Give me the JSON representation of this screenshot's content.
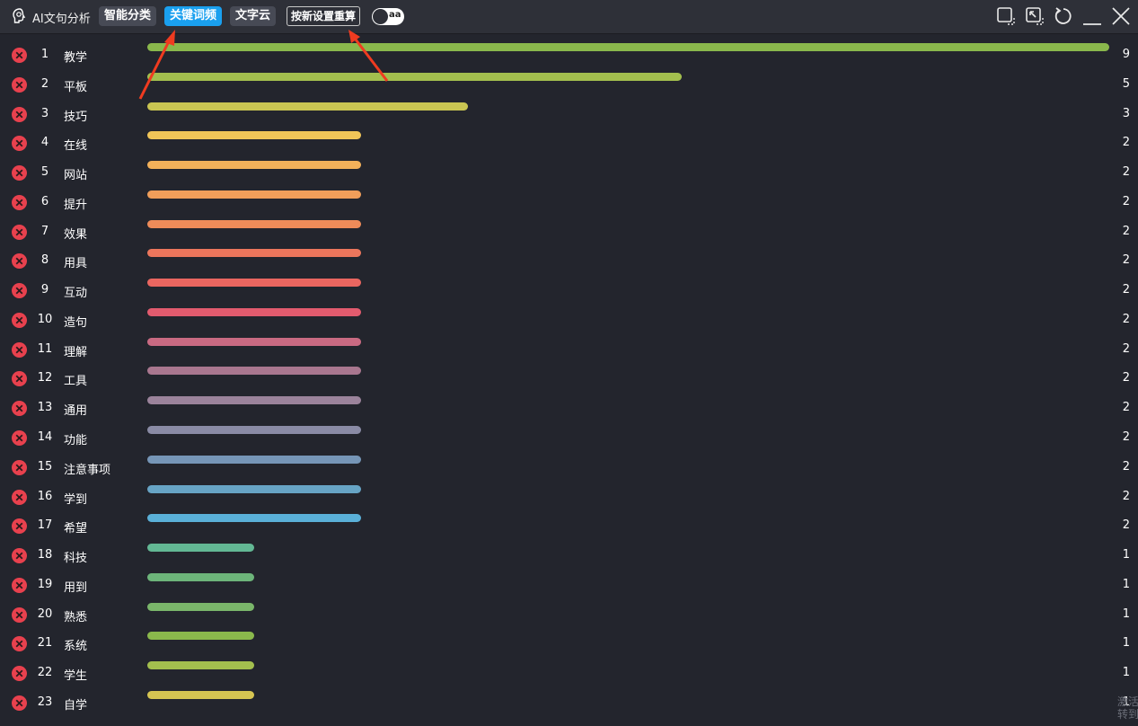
{
  "header": {
    "app_title": "AI文句分析",
    "tabs": [
      {
        "label": "智能分类",
        "active": false
      },
      {
        "label": "关键词频",
        "active": true
      },
      {
        "label": "文字云",
        "active": false
      }
    ],
    "recalc_button": "按新设置重算",
    "toggle_label": "aa",
    "toggle_on": false,
    "accent_color": "#1aa0ef"
  },
  "window_controls": [
    "snap-icon",
    "pin-icon",
    "refresh-icon",
    "minimize-icon",
    "close-icon"
  ],
  "keywords": [
    {
      "rank": "1",
      "word": "教学",
      "count": "9",
      "color": "#8ab84c"
    },
    {
      "rank": "2",
      "word": "平板",
      "count": "5",
      "color": "#a3bf4e"
    },
    {
      "rank": "3",
      "word": "技巧",
      "count": "3",
      "color": "#c9c552"
    },
    {
      "rank": "4",
      "word": "在线",
      "count": "2",
      "color": "#f0c558"
    },
    {
      "rank": "5",
      "word": "网站",
      "count": "2",
      "color": "#f3b15a"
    },
    {
      "rank": "6",
      "word": "提升",
      "count": "2",
      "color": "#f09e5a"
    },
    {
      "rank": "7",
      "word": "效果",
      "count": "2",
      "color": "#ee8b59"
    },
    {
      "rank": "8",
      "word": "用具",
      "count": "2",
      "color": "#ec765c"
    },
    {
      "rank": "9",
      "word": "互动",
      "count": "2",
      "color": "#ea6660"
    },
    {
      "rank": "10",
      "word": "造句",
      "count": "2",
      "color": "#e25b6e"
    },
    {
      "rank": "11",
      "word": "理解",
      "count": "2",
      "color": "#c96a82"
    },
    {
      "rank": "12",
      "word": "工具",
      "count": "2",
      "color": "#a9778f"
    },
    {
      "rank": "13",
      "word": "通用",
      "count": "2",
      "color": "#9b839b"
    },
    {
      "rank": "14",
      "word": "功能",
      "count": "2",
      "color": "#8a8ba5"
    },
    {
      "rank": "15",
      "word": "注意事项",
      "count": "2",
      "color": "#7696b7"
    },
    {
      "rank": "16",
      "word": "学到",
      "count": "2",
      "color": "#67a4c5"
    },
    {
      "rank": "17",
      "word": "希望",
      "count": "2",
      "color": "#5ab0d8"
    },
    {
      "rank": "18",
      "word": "科技",
      "count": "1",
      "color": "#63b894"
    },
    {
      "rank": "19",
      "word": "用到",
      "count": "1",
      "color": "#6db57a"
    },
    {
      "rank": "20",
      "word": "熟悉",
      "count": "1",
      "color": "#7ab66a"
    },
    {
      "rank": "21",
      "word": "系统",
      "count": "1",
      "color": "#8ab84c"
    },
    {
      "rank": "22",
      "word": "学生",
      "count": "1",
      "color": "#a3bf4e"
    },
    {
      "rank": "23",
      "word": "自学",
      "count": "1",
      "color": "#d6c552"
    }
  ],
  "max_count": 9,
  "watermark": {
    "line1": "激活",
    "line2": "转到"
  }
}
